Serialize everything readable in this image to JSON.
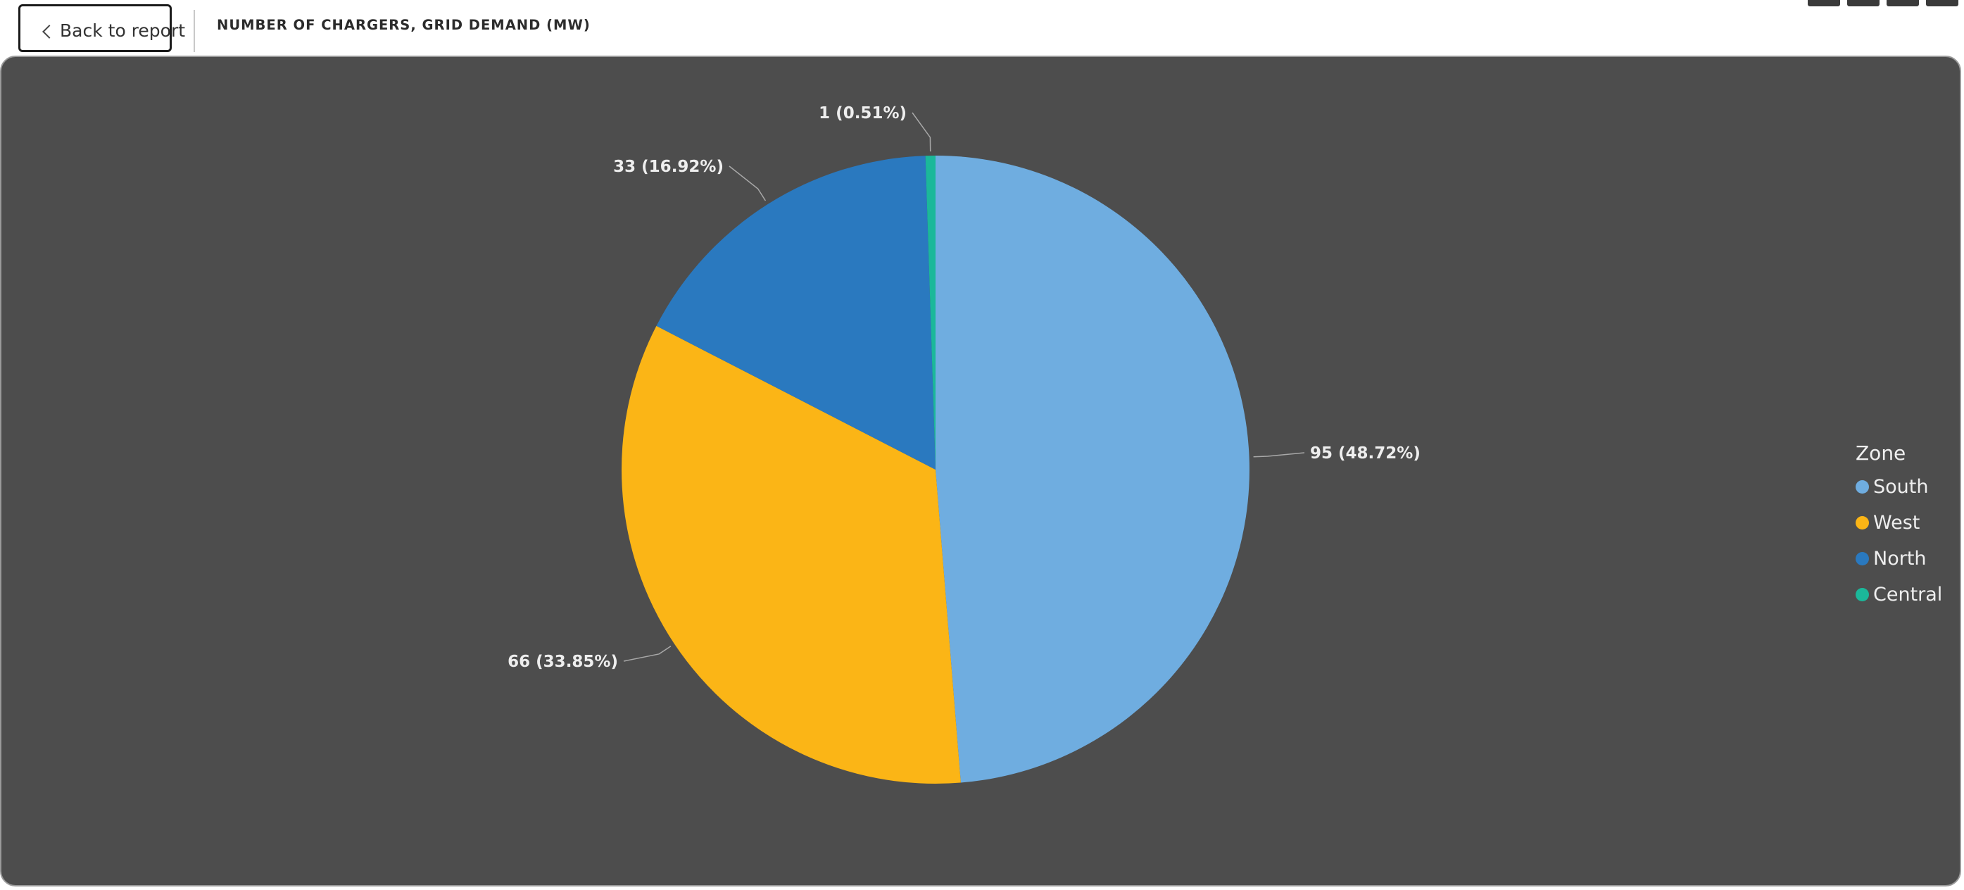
{
  "header": {
    "back_label": "Back to report",
    "title": "NUMBER OF CHARGERS, GRID DEMAND (MW)"
  },
  "icons": {
    "back": "chevron-left-icon"
  },
  "legend": {
    "title": "Zone",
    "items": [
      {
        "label": "South",
        "color": "#6fade0"
      },
      {
        "label": "West",
        "color": "#fbb516"
      },
      {
        "label": "North",
        "color": "#2a79bf"
      },
      {
        "label": "Central",
        "color": "#1bb89a"
      }
    ]
  },
  "chart_data": {
    "type": "pie",
    "title": "NUMBER OF CHARGERS, GRID DEMAND (MW)",
    "legend_title": "Zone",
    "legend_position": "right",
    "slices": [
      {
        "label": "South",
        "value": 95,
        "percent": 48.72,
        "data_label": "95 (48.72%)",
        "color": "#6fade0"
      },
      {
        "label": "West",
        "value": 66,
        "percent": 33.85,
        "data_label": "66 (33.85%)",
        "color": "#fbb516"
      },
      {
        "label": "North",
        "value": 33,
        "percent": 16.92,
        "data_label": "33 (16.92%)",
        "color": "#2a79bf"
      },
      {
        "label": "Central",
        "value": 1,
        "percent": 0.51,
        "data_label": "1 (0.51%)",
        "color": "#1bb89a"
      }
    ]
  }
}
